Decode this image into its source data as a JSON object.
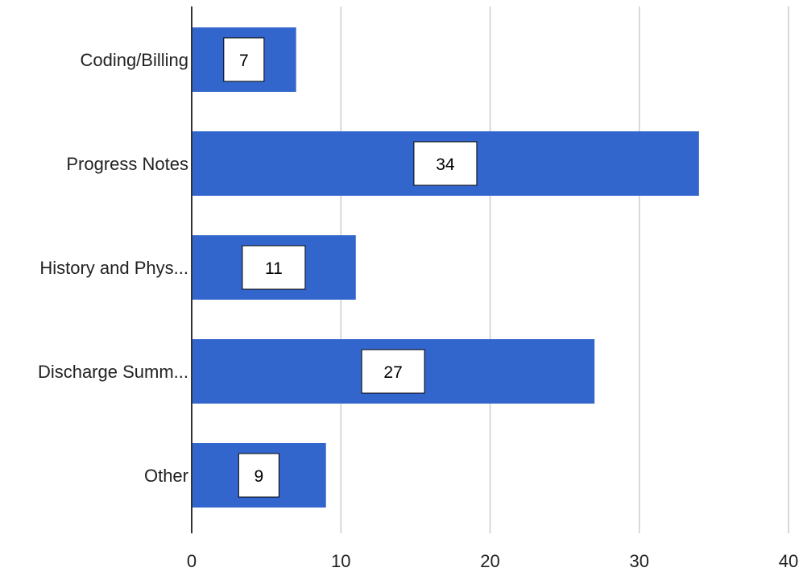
{
  "chart_data": {
    "type": "bar",
    "orientation": "horizontal",
    "categories": [
      "Coding/Billing",
      "Progress Notes",
      "History and Phys...",
      "Discharge Summ...",
      "Other"
    ],
    "values": [
      7,
      34,
      11,
      27,
      9
    ],
    "data_labels": [
      "7",
      "34",
      "11",
      "27",
      "9"
    ],
    "xlim": [
      0,
      40
    ],
    "x_ticks": [
      0,
      10,
      20,
      30,
      40
    ],
    "grid": true,
    "legend": "none",
    "title": "",
    "xlabel": "",
    "ylabel": "",
    "colors": {
      "bar": "#3366cc",
      "grid": "#cccccc",
      "axis": "#333333",
      "label_box_fill": "#ffffff",
      "label_box_stroke": "#000000"
    }
  }
}
